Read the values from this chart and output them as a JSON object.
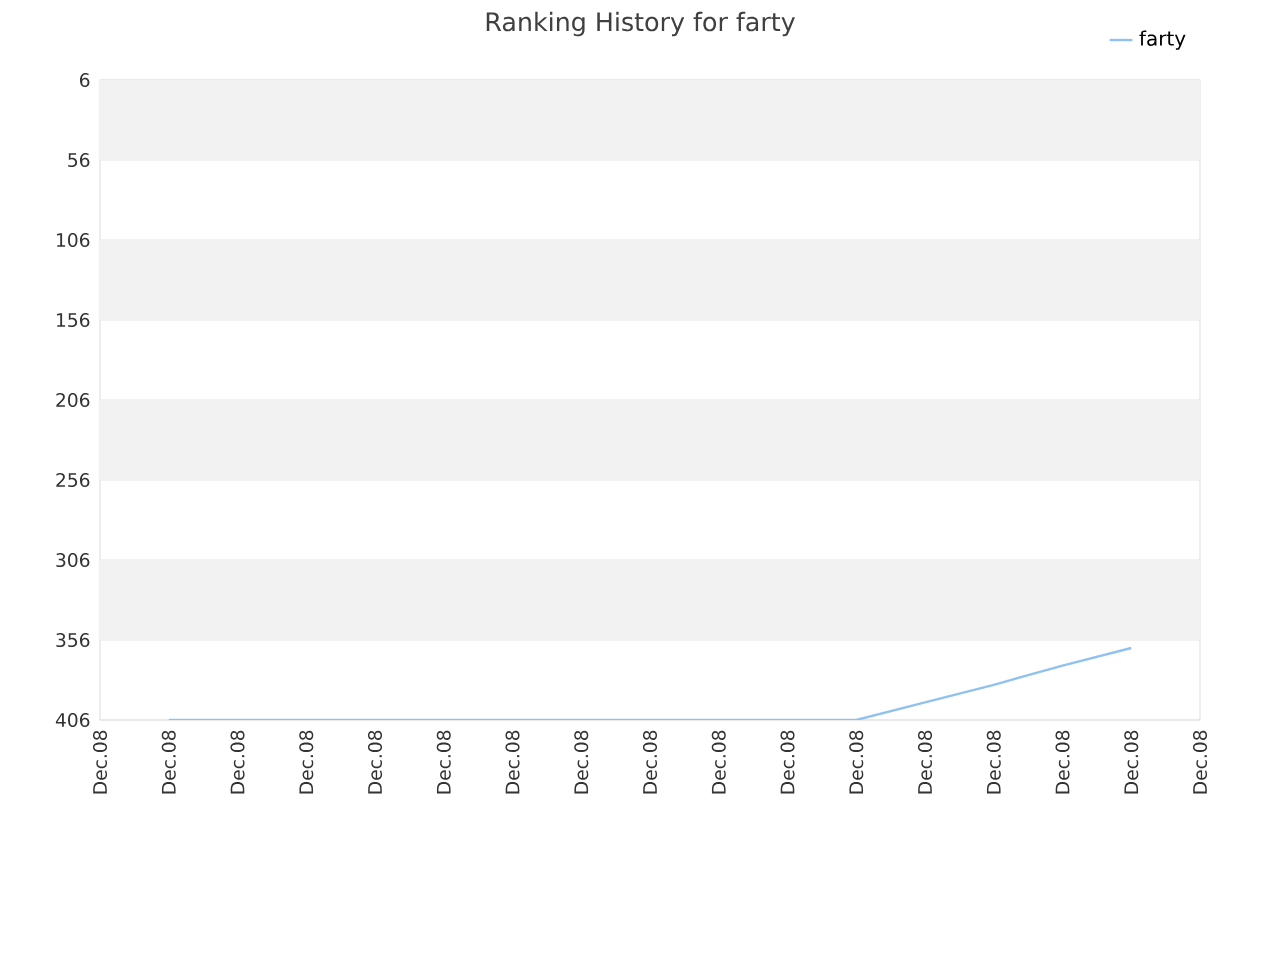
{
  "chart_data": {
    "type": "line",
    "title": "Ranking History for farty",
    "categories": [
      "Dec.08",
      "Dec.08",
      "Dec.08",
      "Dec.08",
      "Dec.08",
      "Dec.08",
      "Dec.08",
      "Dec.08",
      "Dec.08",
      "Dec.08",
      "Dec.08",
      "Dec.08",
      "Dec.08",
      "Dec.08",
      "Dec.08",
      "Dec.08",
      "Dec.08"
    ],
    "series": [
      {
        "name": "farty",
        "color": "#90c2f0",
        "values": [
          null,
          406,
          406,
          406,
          406,
          406,
          406,
          406,
          406,
          406,
          406,
          406,
          395,
          384,
          372,
          361,
          null
        ]
      }
    ],
    "ylim": [
      406,
      6
    ],
    "yticks": [
      6,
      56,
      106,
      156,
      206,
      256,
      306,
      356,
      406
    ],
    "grid": "y",
    "legend": "top right",
    "marker": "none",
    "line_style": "solid"
  }
}
